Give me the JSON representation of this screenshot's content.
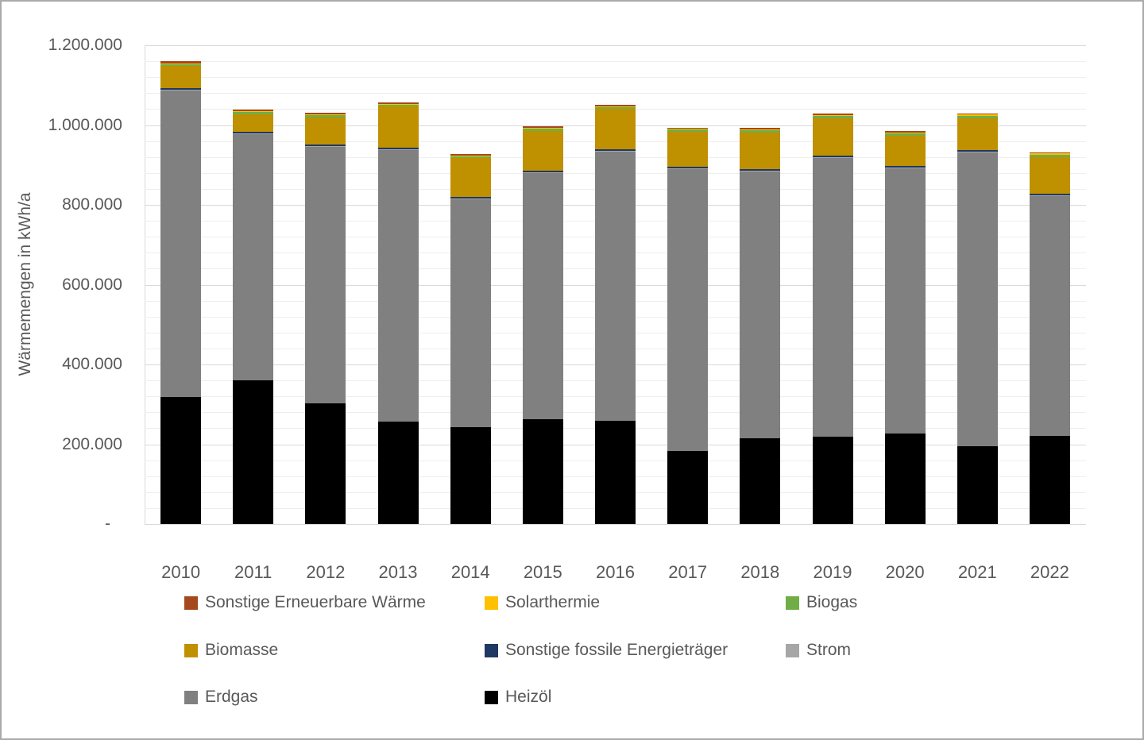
{
  "chart_data": {
    "type": "bar",
    "stacked": true,
    "title": "",
    "xlabel": "",
    "ylabel": "Wärmemengen in kWh/a",
    "ylim": [
      0,
      1200000
    ],
    "ytick_step": 200000,
    "ytick_minor_step": 40000,
    "zero_tick_label": "-",
    "number_format": "de-thousands-dots",
    "grid": true,
    "legend_position": "bottom",
    "categories": [
      "2010",
      "2011",
      "2012",
      "2013",
      "2014",
      "2015",
      "2016",
      "2017",
      "2018",
      "2019",
      "2020",
      "2021",
      "2022"
    ],
    "series": [
      {
        "name": "Heizöl",
        "color": "#000000",
        "values": [
          318000,
          360000,
          302000,
          257000,
          243000,
          263000,
          259000,
          183000,
          215000,
          219000,
          227000,
          195000,
          221000
        ]
      },
      {
        "name": "Erdgas",
        "color": "#808080",
        "values": [
          768000,
          617000,
          643000,
          681000,
          570000,
          617000,
          675000,
          706000,
          669000,
          698000,
          665000,
          737000,
          601000
        ]
      },
      {
        "name": "Strom",
        "color": "#a6a6a6",
        "values": [
          2000,
          2000,
          2000,
          2000,
          2000,
          2000,
          2000,
          2000,
          2000,
          2000,
          2000,
          2000,
          2000
        ]
      },
      {
        "name": "Sonstige fossile Energieträger",
        "color": "#1f3864",
        "values": [
          4000,
          4000,
          4000,
          4000,
          4000,
          4000,
          4000,
          4000,
          4000,
          4000,
          4000,
          4000,
          4000
        ]
      },
      {
        "name": "Biomasse",
        "color": "#bf9000",
        "values": [
          56000,
          44000,
          68000,
          102000,
          98000,
          100000,
          100000,
          88000,
          92000,
          94000,
          76000,
          78000,
          91000
        ]
      },
      {
        "name": "Biogas",
        "color": "#70ad47",
        "values": [
          6000,
          6000,
          6000,
          6000,
          6000,
          6000,
          6000,
          7000,
          7000,
          7000,
          6000,
          6000,
          6000
        ]
      },
      {
        "name": "Solarthermie",
        "color": "#ffc000",
        "values": [
          1000,
          1000,
          1000,
          1000,
          1000,
          1000,
          1000,
          1000,
          1000,
          1000,
          1000,
          5000,
          5000
        ]
      },
      {
        "name": "Sonstige Erneuerbare Wärme",
        "color": "#a5481d",
        "values": [
          6000,
          4000,
          4000,
          4000,
          4000,
          4000,
          3000,
          3000,
          3000,
          3000,
          4000,
          2000,
          2000
        ]
      }
    ],
    "legend_order": [
      "Sonstige Erneuerbare Wärme",
      "Solarthermie",
      "Biogas",
      "Biomasse",
      "Sonstige fossile Energieträger",
      "Strom",
      "Erdgas",
      "Heizöl"
    ]
  }
}
